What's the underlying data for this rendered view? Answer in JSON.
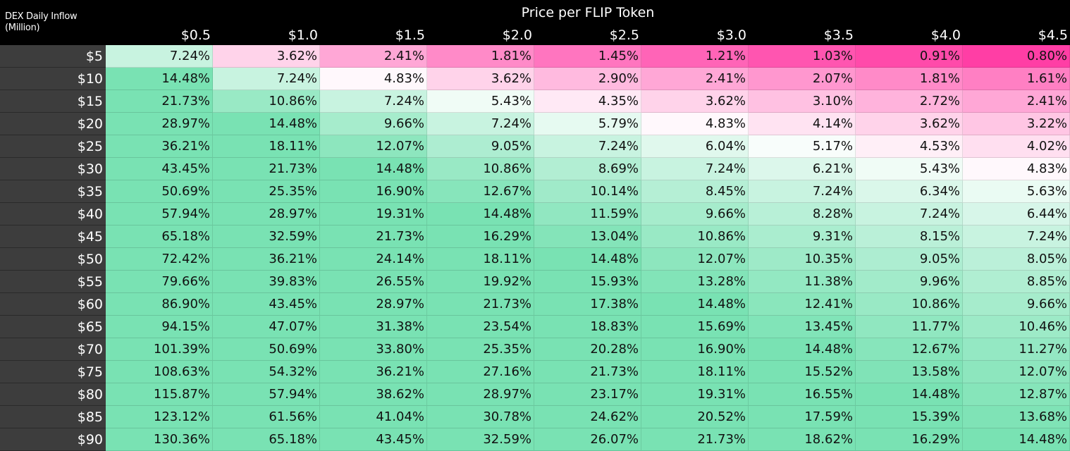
{
  "chart_data": {
    "type": "heatmap",
    "title": "Price per FLIP Token",
    "row_header": "DEX Daily Inflow (Million)",
    "columns": [
      "$0.5",
      "$1.0",
      "$1.5",
      "$2.0",
      "$2.5",
      "$3.0",
      "$3.5",
      "$4.0",
      "$4.5"
    ],
    "rows": [
      "$5",
      "$10",
      "$15",
      "$20",
      "$25",
      "$30",
      "$35",
      "$40",
      "$45",
      "$50",
      "$55",
      "$60",
      "$65",
      "$70",
      "$75",
      "$80",
      "$85",
      "$90"
    ],
    "values": [
      [
        "7.24%",
        "3.62%",
        "2.41%",
        "1.81%",
        "1.45%",
        "1.21%",
        "1.03%",
        "0.91%",
        "0.80%"
      ],
      [
        "14.48%",
        "7.24%",
        "4.83%",
        "3.62%",
        "2.90%",
        "2.41%",
        "2.07%",
        "1.81%",
        "1.61%"
      ],
      [
        "21.73%",
        "10.86%",
        "7.24%",
        "5.43%",
        "4.35%",
        "3.62%",
        "3.10%",
        "2.72%",
        "2.41%"
      ],
      [
        "28.97%",
        "14.48%",
        "9.66%",
        "7.24%",
        "5.79%",
        "4.83%",
        "4.14%",
        "3.62%",
        "3.22%"
      ],
      [
        "36.21%",
        "18.11%",
        "12.07%",
        "9.05%",
        "7.24%",
        "6.04%",
        "5.17%",
        "4.53%",
        "4.02%"
      ],
      [
        "43.45%",
        "21.73%",
        "14.48%",
        "10.86%",
        "8.69%",
        "7.24%",
        "6.21%",
        "5.43%",
        "4.83%"
      ],
      [
        "50.69%",
        "25.35%",
        "16.90%",
        "12.67%",
        "10.14%",
        "8.45%",
        "7.24%",
        "6.34%",
        "5.63%"
      ],
      [
        "57.94%",
        "28.97%",
        "19.31%",
        "14.48%",
        "11.59%",
        "9.66%",
        "8.28%",
        "7.24%",
        "6.44%"
      ],
      [
        "65.18%",
        "32.59%",
        "21.73%",
        "16.29%",
        "13.04%",
        "10.86%",
        "9.31%",
        "8.15%",
        "7.24%"
      ],
      [
        "72.42%",
        "36.21%",
        "24.14%",
        "18.11%",
        "14.48%",
        "12.07%",
        "10.35%",
        "9.05%",
        "8.05%"
      ],
      [
        "79.66%",
        "39.83%",
        "26.55%",
        "19.92%",
        "15.93%",
        "13.28%",
        "11.38%",
        "9.96%",
        "8.85%"
      ],
      [
        "86.90%",
        "43.45%",
        "28.97%",
        "21.73%",
        "17.38%",
        "14.48%",
        "12.41%",
        "10.86%",
        "9.66%"
      ],
      [
        "94.15%",
        "47.07%",
        "31.38%",
        "23.54%",
        "18.83%",
        "15.69%",
        "13.45%",
        "11.77%",
        "10.46%"
      ],
      [
        "101.39%",
        "50.69%",
        "33.80%",
        "25.35%",
        "20.28%",
        "16.90%",
        "14.48%",
        "12.67%",
        "11.27%"
      ],
      [
        "108.63%",
        "54.32%",
        "36.21%",
        "27.16%",
        "21.73%",
        "18.11%",
        "15.52%",
        "13.58%",
        "12.07%"
      ],
      [
        "115.87%",
        "57.94%",
        "38.62%",
        "28.97%",
        "23.17%",
        "19.31%",
        "16.55%",
        "14.48%",
        "12.87%"
      ],
      [
        "123.12%",
        "61.56%",
        "41.04%",
        "30.78%",
        "24.62%",
        "20.52%",
        "17.59%",
        "15.39%",
        "13.68%"
      ],
      [
        "130.36%",
        "65.18%",
        "43.45%",
        "32.59%",
        "26.07%",
        "21.73%",
        "18.62%",
        "16.29%",
        "14.48%"
      ]
    ],
    "color_scale": {
      "low": "#ff3ea5",
      "mid": "#ffffff",
      "high": "#79e2b3",
      "mid_value": 5.0
    }
  }
}
